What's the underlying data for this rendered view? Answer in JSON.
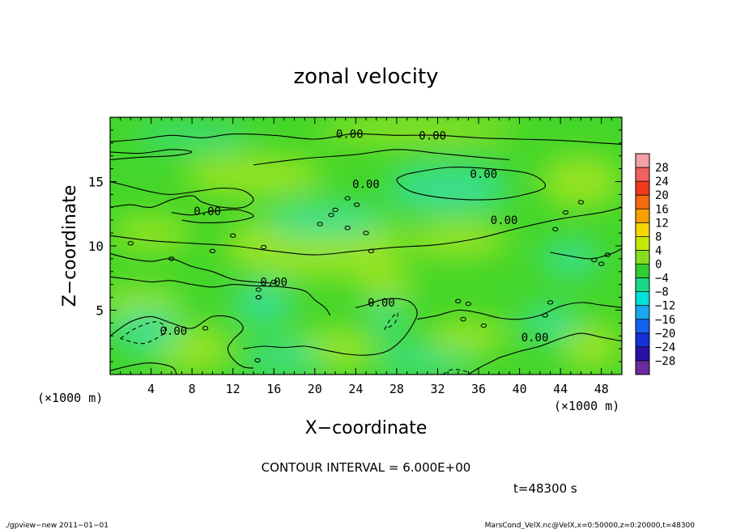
{
  "chart_data": {
    "type": "heatmap",
    "title": "zonal velocity",
    "xlabel": "X−coordinate",
    "ylabel": "Z−coordinate",
    "x_unit": "(×1000 m)",
    "y_unit": "(×1000 m)",
    "xlim": [
      0,
      50
    ],
    "ylim": [
      0,
      20
    ],
    "x_ticks": [
      4,
      8,
      12,
      16,
      20,
      24,
      28,
      32,
      36,
      40,
      44,
      48
    ],
    "y_ticks": [
      5,
      10,
      15
    ],
    "contour_interval_text": "CONTOUR INTERVAL = 6.000E+00",
    "time_text": "t=48300 s",
    "contour_label": "0.00",
    "colorbar": {
      "levels": [
        "28",
        "24",
        "20",
        "16",
        "12",
        "8",
        "4",
        "0",
        "−4",
        "−8",
        "−12",
        "−16",
        "−20",
        "−24",
        "−28"
      ],
      "colors": [
        "#f4a0a8",
        "#f26060",
        "#ef3a1e",
        "#f46a10",
        "#f7a000",
        "#f3d800",
        "#c4e800",
        "#86dd20",
        "#33cc33",
        "#16d888",
        "#00e0d8",
        "#17a8ee",
        "#1562f0",
        "#1530d8",
        "#2a10a8",
        "#6a2c9c"
      ]
    },
    "field_colors": {
      "base": "#44d62a",
      "positive": "#a8e622",
      "negative": "#36e0a0"
    },
    "positive_regions": [
      {
        "x": 8,
        "y": 2,
        "rx": 4,
        "ry": 1.8
      },
      {
        "x": 3,
        "y": 5.5,
        "rx": 4,
        "ry": 1.4
      },
      {
        "x": 22,
        "y": 2,
        "rx": 4,
        "ry": 1.6
      },
      {
        "x": 27,
        "y": 7,
        "rx": 3,
        "ry": 1.2
      },
      {
        "x": 35,
        "y": 3,
        "rx": 4,
        "ry": 1.3
      },
      {
        "x": 47,
        "y": 2.2,
        "rx": 3,
        "ry": 1.8
      },
      {
        "x": 20,
        "y": 10,
        "rx": 9,
        "ry": 2.5
      },
      {
        "x": 34,
        "y": 10.5,
        "rx": 5,
        "ry": 1.4
      },
      {
        "x": 46,
        "y": 15,
        "rx": 4,
        "ry": 2
      },
      {
        "x": 14,
        "y": 15.5,
        "rx": 7,
        "ry": 1.6
      },
      {
        "x": 30,
        "y": 19,
        "rx": 10,
        "ry": 1
      },
      {
        "x": 4,
        "y": 11,
        "rx": 4,
        "ry": 1.3
      }
    ],
    "negative_regions": [
      {
        "x": 3.5,
        "y": 3.5,
        "rx": 3.5,
        "ry": 1.8
      },
      {
        "x": 15,
        "y": 5.5,
        "rx": 3,
        "ry": 1.8
      },
      {
        "x": 17,
        "y": 1.3,
        "rx": 4,
        "ry": 1.2
      },
      {
        "x": 29,
        "y": 1.2,
        "rx": 3,
        "ry": 1.1
      },
      {
        "x": 33,
        "y": 0.9,
        "rx": 2.5,
        "ry": 0.8
      },
      {
        "x": 27,
        "y": 4.5,
        "rx": 2,
        "ry": 1.2
      },
      {
        "x": 43,
        "y": 4,
        "rx": 3,
        "ry": 1.4
      },
      {
        "x": 33,
        "y": 14.5,
        "rx": 6,
        "ry": 2
      },
      {
        "x": 21,
        "y": 12,
        "rx": 6,
        "ry": 1.4
      },
      {
        "x": 8,
        "y": 18.5,
        "rx": 6,
        "ry": 0.8
      },
      {
        "x": 45,
        "y": 9,
        "rx": 3,
        "ry": 1.4
      }
    ],
    "contour_lines": [
      {
        "style": "solid",
        "points": [
          [
            0,
            18.1
          ],
          [
            3,
            18.3
          ],
          [
            6,
            18.6
          ],
          [
            9,
            18.4
          ],
          [
            12,
            18.7
          ],
          [
            16,
            18.6
          ],
          [
            20,
            18.3
          ],
          [
            23.5,
            18.7
          ],
          [
            25,
            18.7
          ],
          [
            28,
            18.6
          ],
          [
            32,
            18.6
          ],
          [
            36,
            18.4
          ],
          [
            40,
            18.3
          ],
          [
            44,
            18.2
          ],
          [
            48,
            18.0
          ],
          [
            50,
            17.9
          ]
        ]
      },
      {
        "style": "solid",
        "points": [
          [
            0,
            17.3
          ],
          [
            3,
            17.2
          ],
          [
            6,
            17.5
          ],
          [
            8,
            17.3
          ],
          [
            6,
            17.0
          ],
          [
            3,
            16.9
          ],
          [
            0,
            16.7
          ]
        ]
      },
      {
        "style": "solid",
        "points": [
          [
            14,
            16.3
          ],
          [
            19,
            16.8
          ],
          [
            24,
            17.1
          ],
          [
            28,
            17.5
          ],
          [
            32,
            17.2
          ],
          [
            36,
            16.9
          ],
          [
            39,
            16.7
          ]
        ]
      },
      {
        "style": "solid",
        "points": [
          [
            29,
            15.6
          ],
          [
            28,
            15.1
          ],
          [
            29.5,
            14.2
          ],
          [
            33,
            13.7
          ],
          [
            37,
            13.6
          ],
          [
            40,
            13.9
          ],
          [
            42.5,
            14.6
          ],
          [
            41,
            15.6
          ],
          [
            37,
            16.0
          ],
          [
            33,
            16.1
          ],
          [
            29,
            15.6
          ]
        ]
      },
      {
        "style": "solid",
        "points": [
          [
            0,
            15.0
          ],
          [
            2,
            14.6
          ],
          [
            4,
            14.2
          ],
          [
            6,
            14.0
          ],
          [
            9,
            14.3
          ],
          [
            11,
            14.5
          ],
          [
            13,
            14.3
          ],
          [
            14,
            13.6
          ],
          [
            13,
            13.0
          ],
          [
            11,
            13.0
          ],
          [
            9,
            13.4
          ],
          [
            8,
            13.9
          ],
          [
            6,
            13.6
          ],
          [
            4,
            13.0
          ],
          [
            2,
            13.2
          ],
          [
            0,
            13.0
          ]
        ]
      },
      {
        "style": "solid",
        "points": [
          [
            6,
            12.6
          ],
          [
            8,
            12.4
          ],
          [
            10,
            12.7
          ],
          [
            12.5,
            12.8
          ],
          [
            14,
            12.3
          ],
          [
            12,
            11.9
          ],
          [
            9,
            11.8
          ],
          [
            7,
            12.0
          ]
        ]
      },
      {
        "style": "solid",
        "points": [
          [
            0,
            10.8
          ],
          [
            4,
            10.4
          ],
          [
            8,
            10.2
          ],
          [
            12,
            10.0
          ],
          [
            16,
            9.6
          ],
          [
            20,
            9.3
          ],
          [
            24,
            9.6
          ],
          [
            28,
            9.9
          ],
          [
            32,
            10.1
          ],
          [
            36,
            10.6
          ],
          [
            40,
            11.4
          ],
          [
            44,
            12.1
          ],
          [
            48,
            12.6
          ],
          [
            50,
            13.0
          ]
        ]
      },
      {
        "style": "solid",
        "points": [
          [
            0,
            9.4
          ],
          [
            2,
            9.0
          ],
          [
            4,
            8.8
          ],
          [
            6,
            9.0
          ],
          [
            8,
            8.4
          ],
          [
            10,
            8.0
          ],
          [
            12,
            7.4
          ],
          [
            14,
            7.2
          ],
          [
            16,
            7.1
          ]
        ]
      },
      {
        "style": "solid",
        "points": [
          [
            0,
            7.6
          ],
          [
            2,
            7.4
          ],
          [
            4,
            7.2
          ],
          [
            6,
            7.3
          ],
          [
            8,
            7.0
          ],
          [
            10,
            6.8
          ],
          [
            12,
            7.0
          ],
          [
            14,
            6.9
          ],
          [
            17,
            6.8
          ],
          [
            19,
            6.5
          ],
          [
            20,
            5.8
          ],
          [
            21,
            5.2
          ],
          [
            21.5,
            4.6
          ]
        ]
      },
      {
        "style": "solid",
        "points": [
          [
            0,
            3.0
          ],
          [
            2,
            4.1
          ],
          [
            4,
            4.5
          ],
          [
            6,
            4.0
          ],
          [
            8,
            3.6
          ],
          [
            10,
            4.5
          ],
          [
            12,
            4.4
          ],
          [
            13,
            3.6
          ],
          [
            12,
            2.7
          ],
          [
            11.5,
            2.0
          ],
          [
            12,
            1.2
          ],
          [
            13,
            0.6
          ],
          [
            14,
            0.5
          ]
        ]
      },
      {
        "style": "solid",
        "points": [
          [
            13,
            2.0
          ],
          [
            15,
            2.2
          ],
          [
            17,
            2.1
          ],
          [
            19,
            2.2
          ],
          [
            21,
            1.9
          ],
          [
            23,
            1.6
          ],
          [
            25,
            1.5
          ],
          [
            27,
            1.8
          ],
          [
            28.5,
            2.7
          ],
          [
            29.5,
            3.8
          ],
          [
            30,
            4.8
          ],
          [
            29.4,
            5.6
          ],
          [
            28,
            5.9
          ],
          [
            26.5,
            5.8
          ],
          [
            25,
            5.4
          ],
          [
            24,
            5.2
          ]
        ]
      },
      {
        "style": "solid",
        "points": [
          [
            30,
            4.3
          ],
          [
            32,
            4.6
          ],
          [
            34,
            5.0
          ],
          [
            36,
            4.8
          ],
          [
            38,
            4.4
          ],
          [
            40,
            4.3
          ],
          [
            42,
            4.6
          ],
          [
            44,
            5.3
          ],
          [
            46,
            5.6
          ],
          [
            48,
            5.4
          ],
          [
            50,
            5.2
          ]
        ]
      },
      {
        "style": "solid",
        "points": [
          [
            38,
            1.3
          ],
          [
            40,
            1.8
          ],
          [
            42,
            2.2
          ],
          [
            44,
            2.8
          ],
          [
            46,
            3.2
          ],
          [
            48,
            2.9
          ],
          [
            50,
            2.6
          ]
        ]
      },
      {
        "style": "solid",
        "points": [
          [
            35,
            0.0
          ],
          [
            36,
            0.5
          ],
          [
            37,
            0.9
          ],
          [
            38,
            1.3
          ]
        ]
      },
      {
        "style": "solid",
        "points": [
          [
            0,
            0.3
          ],
          [
            2,
            0.7
          ],
          [
            4,
            0.9
          ],
          [
            6,
            0.6
          ],
          [
            6.5,
            0.0
          ]
        ]
      },
      {
        "style": "solid",
        "points": [
          [
            43,
            9.5
          ],
          [
            45,
            9.2
          ],
          [
            47,
            9.0
          ],
          [
            49,
            9.4
          ],
          [
            50,
            9.8
          ]
        ]
      },
      {
        "style": "dashed",
        "points": [
          [
            1,
            2.8
          ],
          [
            2.5,
            3.6
          ],
          [
            4.5,
            4.1
          ],
          [
            5.5,
            3.5
          ],
          [
            4.5,
            2.8
          ],
          [
            3,
            2.4
          ],
          [
            1,
            2.8
          ]
        ]
      },
      {
        "style": "dashed",
        "points": [
          [
            26.8,
            3.5
          ],
          [
            27.4,
            4.3
          ],
          [
            28.1,
            4.8
          ],
          [
            27.8,
            4.0
          ],
          [
            26.8,
            3.5
          ]
        ]
      },
      {
        "style": "dashed",
        "points": [
          [
            32.5,
            0.0
          ],
          [
            33.5,
            0.4
          ],
          [
            35,
            0.2
          ]
        ]
      }
    ],
    "contour_label_positions": [
      [
        23.4,
        18.7
      ],
      [
        31.5,
        18.6
      ],
      [
        36.5,
        15.6
      ],
      [
        25,
        14.8
      ],
      [
        9.5,
        12.7
      ],
      [
        38.5,
        12.0
      ],
      [
        16,
        7.2
      ],
      [
        26.5,
        5.6
      ],
      [
        6.2,
        3.4
      ],
      [
        41.5,
        2.9
      ]
    ],
    "small_loops": [
      [
        12,
        10.8
      ],
      [
        10,
        9.6
      ],
      [
        6,
        9.0
      ],
      [
        2,
        10.2
      ],
      [
        20.5,
        11.7
      ],
      [
        22,
        12.8
      ],
      [
        23.2,
        13.7
      ],
      [
        24.1,
        13.2
      ],
      [
        23.2,
        11.4
      ],
      [
        21.6,
        12.4
      ],
      [
        25,
        11.0
      ],
      [
        25.5,
        9.6
      ],
      [
        15,
        9.9
      ],
      [
        16,
        7.2
      ],
      [
        14.5,
        6.6
      ],
      [
        14.5,
        6.0
      ],
      [
        34,
        5.7
      ],
      [
        35,
        5.5
      ],
      [
        34.5,
        4.3
      ],
      [
        36.5,
        3.8
      ],
      [
        43.5,
        11.3
      ],
      [
        44.5,
        12.6
      ],
      [
        46,
        13.4
      ],
      [
        47.3,
        8.9
      ],
      [
        48,
        8.6
      ],
      [
        48.6,
        9.3
      ],
      [
        43,
        5.6
      ],
      [
        42.5,
        4.6
      ],
      [
        9.3,
        3.6
      ],
      [
        14.4,
        1.1
      ]
    ]
  },
  "footer": {
    "left": "./gpview−new   2011−01−01",
    "right": "MarsCond_VelX.nc@VelX,x=0:50000,z=0:20000,t=48300"
  }
}
